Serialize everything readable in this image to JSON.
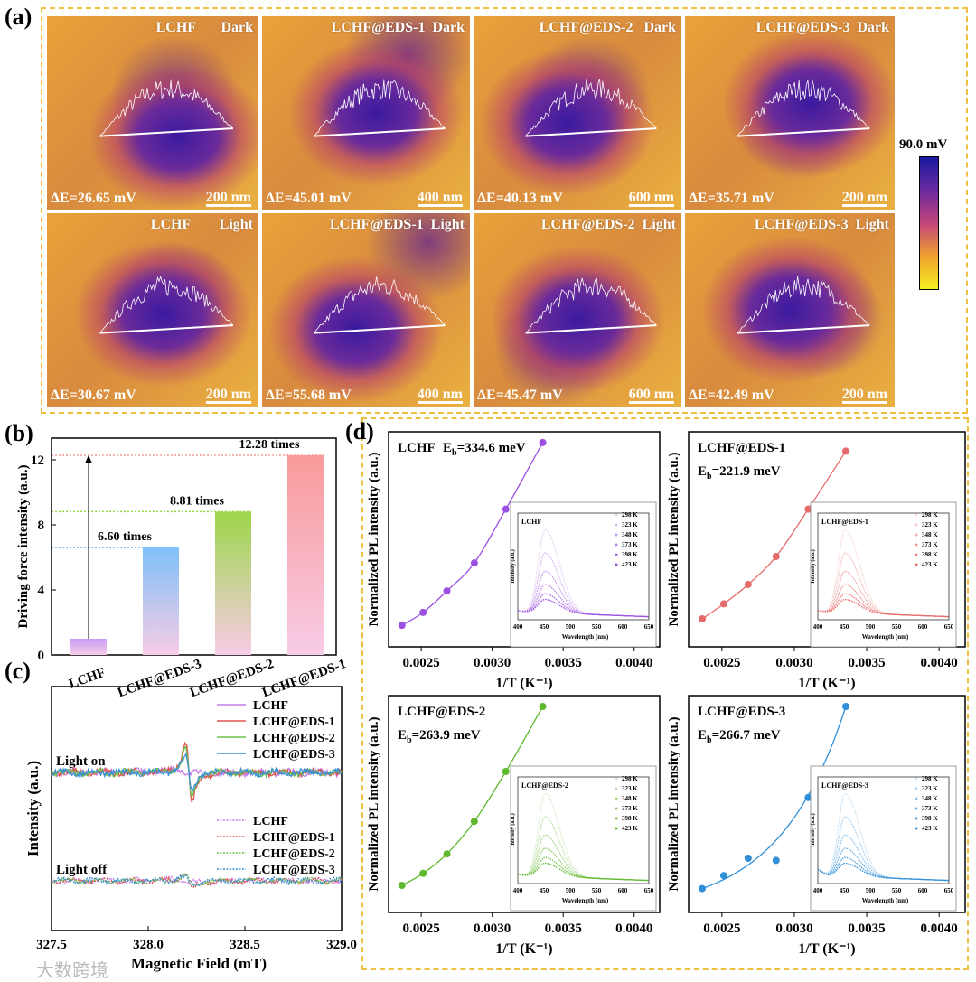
{
  "panel_labels": {
    "a": "(a)",
    "b": "(b)",
    "c": "(c)",
    "d": "(d)"
  },
  "maps": {
    "colorbar_label": "90.0 mV",
    "tiles": [
      {
        "title": "LCHF       Dark",
        "delta_e": "ΔE=26.65 mV",
        "scale": "200 nm"
      },
      {
        "title": "LCHF@EDS-1  Dark",
        "delta_e": "ΔE=45.01 mV",
        "scale": "400 nm"
      },
      {
        "title": "LCHF@EDS-2   Dark",
        "delta_e": "ΔE=40.13 mV",
        "scale": "600 nm"
      },
      {
        "title": "LCHF@EDS-3  Dark",
        "delta_e": "ΔE=35.71 mV",
        "scale": "200 nm"
      },
      {
        "title": "LCHF        Light",
        "delta_e": "ΔE=30.67 mV",
        "scale": "200 nm"
      },
      {
        "title": "LCHF@EDS-1  Light",
        "delta_e": "ΔE=55.68 mV",
        "scale": "400 nm"
      },
      {
        "title": "LCHF@EDS-2  Light",
        "delta_e": "ΔE=45.47 mV",
        "scale": "600 nm"
      },
      {
        "title": "LCHF@EDS-3  Light",
        "delta_e": "ΔE=42.49 mV",
        "scale": "200 nm"
      }
    ]
  },
  "chart_data": [
    {
      "id": "b",
      "type": "bar",
      "categories": [
        "LCHF",
        "LCHF@EDS-3",
        "LCHF@EDS-2",
        "LCHF@EDS-1"
      ],
      "values": [
        1.0,
        6.6,
        8.81,
        12.28
      ],
      "annotations": [
        "",
        "6.60 times",
        "8.81 times",
        "12.28 times"
      ],
      "colors": [
        "#c99cf6",
        "#7fc0f8",
        "#9cd64a",
        "#f99a9a"
      ],
      "ylabel": "Driving force intensity (a.u.)",
      "yticks": [
        "0",
        "4",
        "8",
        "12"
      ],
      "ylim": [
        0,
        13.5
      ]
    },
    {
      "id": "c",
      "type": "line",
      "title": "",
      "xlabel": "Magnetic Field (mT)",
      "ylabel": "Intensity (a.u.)",
      "xticks": [
        "327.5",
        "328.0",
        "328.5",
        "329.0"
      ],
      "xlim": [
        327.5,
        329.0
      ],
      "groups": [
        {
          "name": "Light on",
          "series": [
            {
              "name": "LCHF",
              "color": "#c77de8",
              "amplitude": 0.06
            },
            {
              "name": "LCHF@EDS-1",
              "color": "#e0524f",
              "amplitude": 1.0
            },
            {
              "name": "LCHF@EDS-2",
              "color": "#6cc04a",
              "amplitude": 0.75
            },
            {
              "name": "LCHF@EDS-3",
              "color": "#3a8fd6",
              "amplitude": 0.55
            }
          ]
        },
        {
          "name": "Light off",
          "series": [
            {
              "name": "LCHF",
              "color": "#c77de8",
              "amplitude": 0.04
            },
            {
              "name": "LCHF@EDS-1",
              "color": "#e0524f",
              "amplitude": 0.22
            },
            {
              "name": "LCHF@EDS-2",
              "color": "#6cc04a",
              "amplitude": 0.16
            },
            {
              "name": "LCHF@EDS-3",
              "color": "#3a8fd6",
              "amplitude": 0.12
            }
          ]
        }
      ],
      "center_field": 328.21
    },
    {
      "id": "d",
      "type": "scatter",
      "xlabel": "1/T (K⁻¹)",
      "ylabel": "Normalized PL intensity (a.u.)",
      "xticks": [
        "0.0025",
        "0.0030",
        "0.0035",
        "0.0040"
      ],
      "xlim": [
        0.00227,
        0.00418
      ],
      "eb_symbol": "E",
      "eb_sub": "b",
      "inset": {
        "xlabel": "Wavelength (nm)",
        "ylabel": "Intensity (a.u.)",
        "xticks": [
          "400",
          "450",
          "500",
          "550",
          "600",
          "650"
        ],
        "temperatures": [
          "298 K",
          "323 K",
          "348 K",
          "373 K",
          "398 K",
          "423 K"
        ],
        "relative_peak": [
          1.0,
          0.72,
          0.5,
          0.34,
          0.23,
          0.16
        ],
        "peak_nm": 452
      },
      "panels": [
        {
          "name": "LCHF",
          "eb": "=334.6 meV",
          "color": "#9b4fe0",
          "x": [
            0.002364,
            0.002513,
            0.002681,
            0.002874,
            0.003096,
            0.003356
          ],
          "y": [
            0.1,
            0.16,
            0.26,
            0.39,
            0.64,
            0.95
          ]
        },
        {
          "name": "LCHF@EDS-1",
          "eb": "=221.9 meV",
          "color": "#e56a6a",
          "x": [
            0.002364,
            0.002513,
            0.002681,
            0.002874,
            0.003096,
            0.003356
          ],
          "y": [
            0.13,
            0.2,
            0.29,
            0.42,
            0.64,
            0.91
          ]
        },
        {
          "name": "LCHF@EDS-2",
          "eb": "=263.9 meV",
          "color": "#5fb82e",
          "x": [
            0.002364,
            0.002513,
            0.002681,
            0.002874,
            0.003096,
            0.003356
          ],
          "y": [
            0.125,
            0.18,
            0.27,
            0.42,
            0.65,
            0.95
          ]
        },
        {
          "name": "LCHF@EDS-3",
          "eb": "=266.7 meV",
          "color": "#2f8fd8",
          "x": [
            0.002364,
            0.002513,
            0.002681,
            0.002874,
            0.003096,
            0.003356
          ],
          "y": [
            0.11,
            0.17,
            0.25,
            0.24,
            0.53,
            0.95
          ]
        }
      ]
    }
  ],
  "watermark": "大数跨境"
}
